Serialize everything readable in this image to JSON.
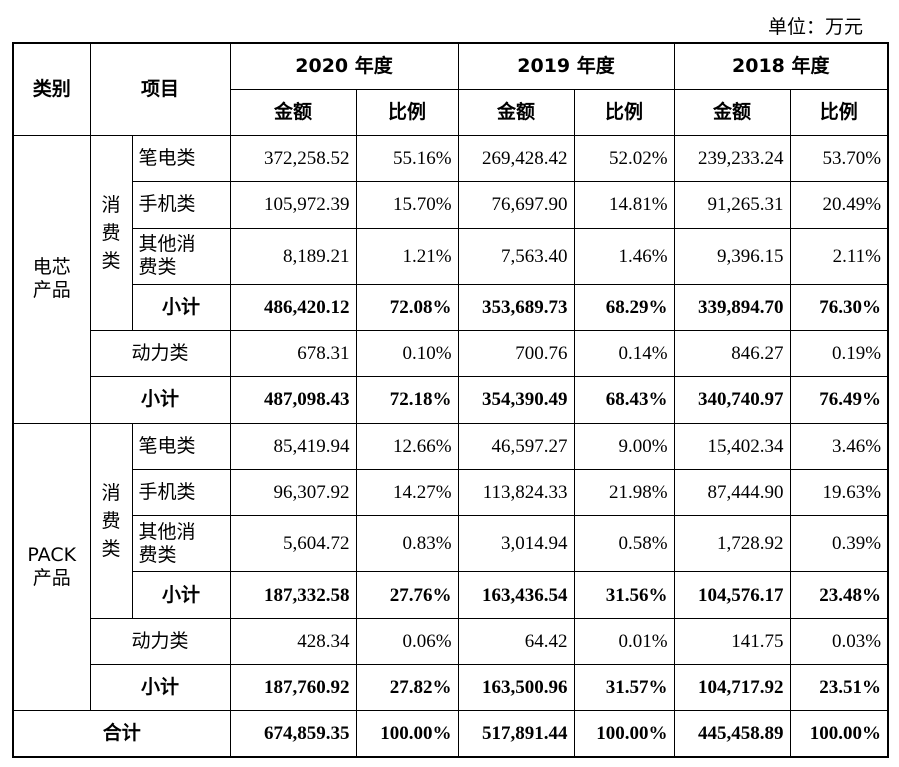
{
  "unit": "单位：万元",
  "header": {
    "category": "类别",
    "item": "项目",
    "years": [
      "2020 年度",
      "2019 年度",
      "2018 年度"
    ],
    "amount": "金额",
    "ratio": "比例"
  },
  "groups": [
    {
      "name_line1": "电芯",
      "name_line2": "产品",
      "consumer_label": [
        "消",
        "费",
        "类"
      ],
      "consumer_rows": [
        {
          "label": "笔电类",
          "values": [
            "372,258.52",
            "55.16%",
            "269,428.42",
            "52.02%",
            "239,233.24",
            "53.70%"
          ]
        },
        {
          "label": "手机类",
          "values": [
            "105,972.39",
            "15.70%",
            "76,697.90",
            "14.81%",
            "91,265.31",
            "20.49%"
          ]
        },
        {
          "label_line1": "其他消",
          "label_line2": "费类",
          "values": [
            "8,189.21",
            "1.21%",
            "7,563.40",
            "1.46%",
            "9,396.15",
            "2.11%"
          ]
        },
        {
          "label": "小计",
          "values": [
            "486,420.12",
            "72.08%",
            "353,689.73",
            "68.29%",
            "339,894.70",
            "76.30%"
          ]
        }
      ],
      "power_row": {
        "label": "动力类",
        "values": [
          "678.31",
          "0.10%",
          "700.76",
          "0.14%",
          "846.27",
          "0.19%"
        ]
      },
      "subtotal_row": {
        "label": "小计",
        "values": [
          "487,098.43",
          "72.18%",
          "354,390.49",
          "68.43%",
          "340,740.97",
          "76.49%"
        ]
      }
    },
    {
      "name_line1": "PACK",
      "name_line2": "产品",
      "consumer_label": [
        "消",
        "费",
        "类"
      ],
      "consumer_rows": [
        {
          "label": "笔电类",
          "values": [
            "85,419.94",
            "12.66%",
            "46,597.27",
            "9.00%",
            "15,402.34",
            "3.46%"
          ]
        },
        {
          "label": "手机类",
          "values": [
            "96,307.92",
            "14.27%",
            "113,824.33",
            "21.98%",
            "87,444.90",
            "19.63%"
          ]
        },
        {
          "label_line1": "其他消",
          "label_line2": "费类",
          "values": [
            "5,604.72",
            "0.83%",
            "3,014.94",
            "0.58%",
            "1,728.92",
            "0.39%"
          ]
        },
        {
          "label": "小计",
          "values": [
            "187,332.58",
            "27.76%",
            "163,436.54",
            "31.56%",
            "104,576.17",
            "23.48%"
          ]
        }
      ],
      "power_row": {
        "label": "动力类",
        "values": [
          "428.34",
          "0.06%",
          "64.42",
          "0.01%",
          "141.75",
          "0.03%"
        ]
      },
      "subtotal_row": {
        "label": "小计",
        "values": [
          "187,760.92",
          "27.82%",
          "163,500.96",
          "31.57%",
          "104,717.92",
          "23.51%"
        ]
      }
    }
  ],
  "total_row": {
    "label": "合计",
    "values": [
      "674,859.35",
      "100.00%",
      "517,891.44",
      "100.00%",
      "445,458.89",
      "100.00%"
    ]
  }
}
